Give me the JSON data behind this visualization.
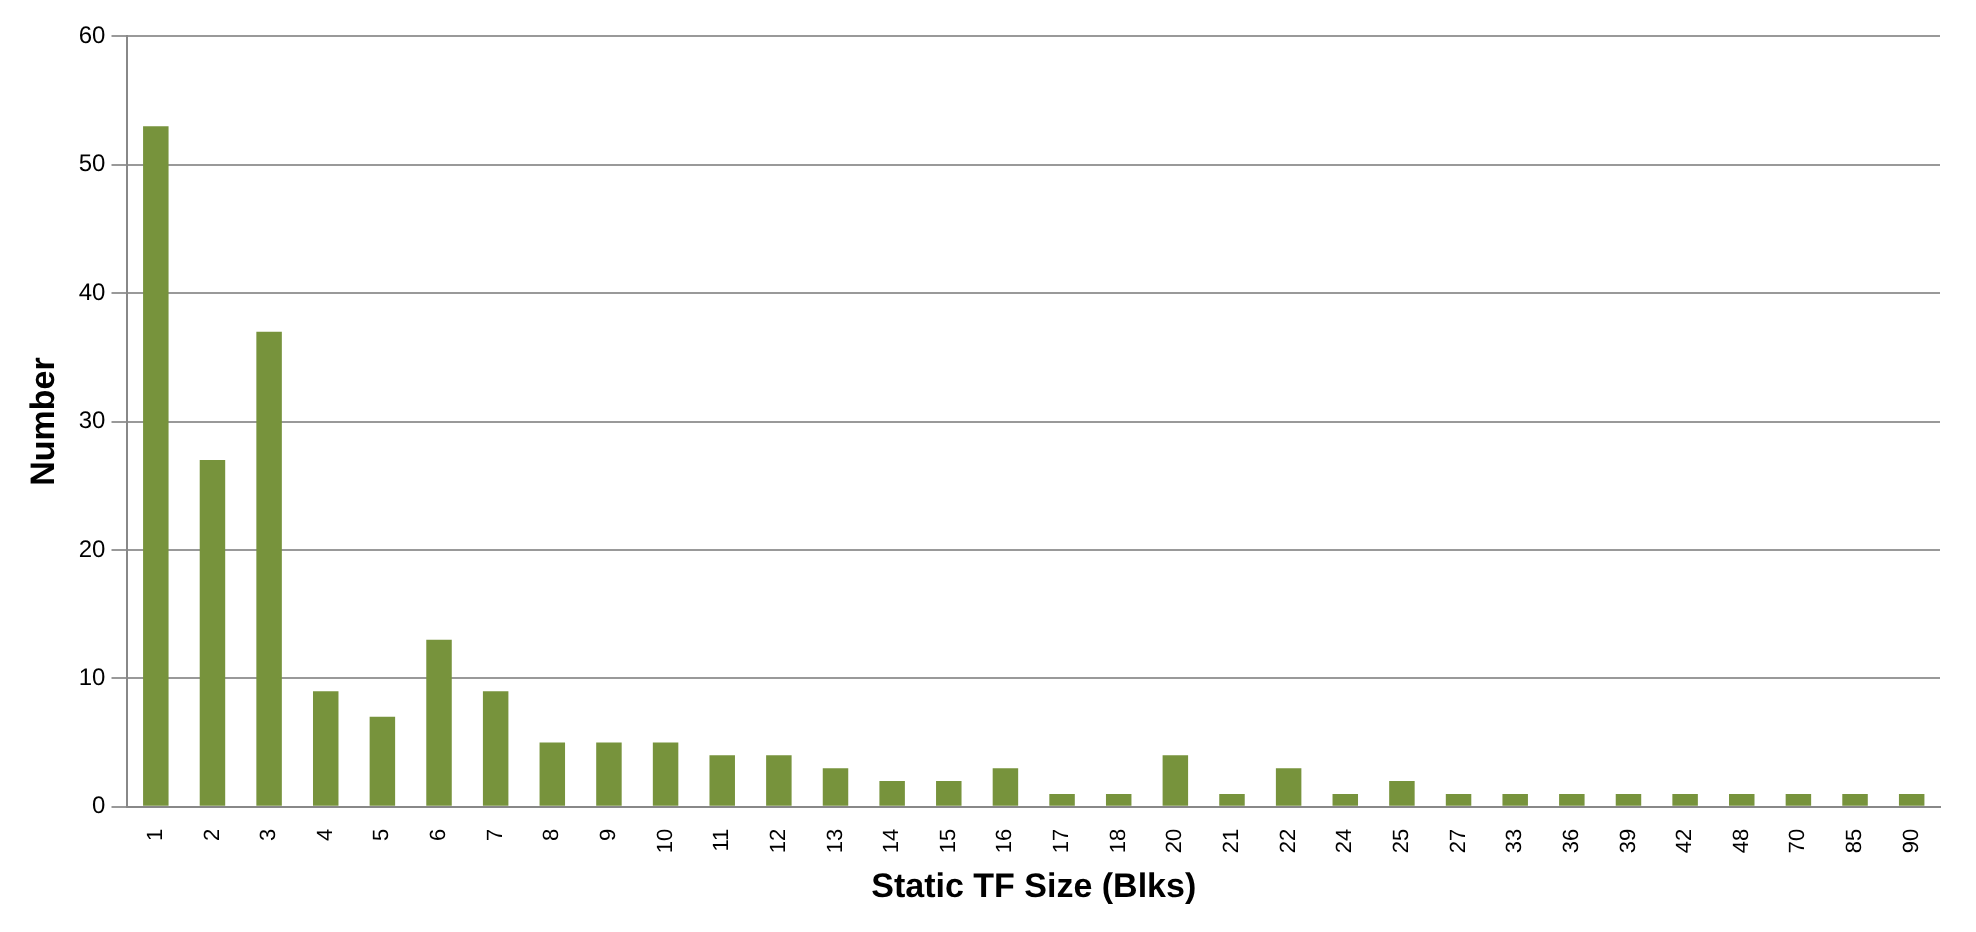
{
  "chart_data": {
    "type": "bar",
    "xlabel": "Static TF Size (Blks)",
    "ylabel": "Number",
    "categories": [
      "1",
      "2",
      "3",
      "4",
      "5",
      "6",
      "7",
      "8",
      "9",
      "10",
      "11",
      "12",
      "13",
      "14",
      "15",
      "16",
      "17",
      "18",
      "20",
      "21",
      "22",
      "24",
      "25",
      "27",
      "33",
      "36",
      "39",
      "42",
      "48",
      "70",
      "85",
      "90"
    ],
    "values": [
      53,
      27,
      37,
      9,
      7,
      13,
      9,
      5,
      5,
      5,
      4,
      4,
      3,
      2,
      2,
      3,
      1,
      1,
      4,
      1,
      3,
      1,
      2,
      1,
      1,
      1,
      1,
      1,
      1,
      1,
      1,
      1
    ],
    "color": "#77933c",
    "ylim": [
      0,
      60
    ],
    "yticks": [
      0,
      10,
      20,
      30,
      40,
      50,
      60
    ],
    "grid": "y",
    "legend": false
  }
}
